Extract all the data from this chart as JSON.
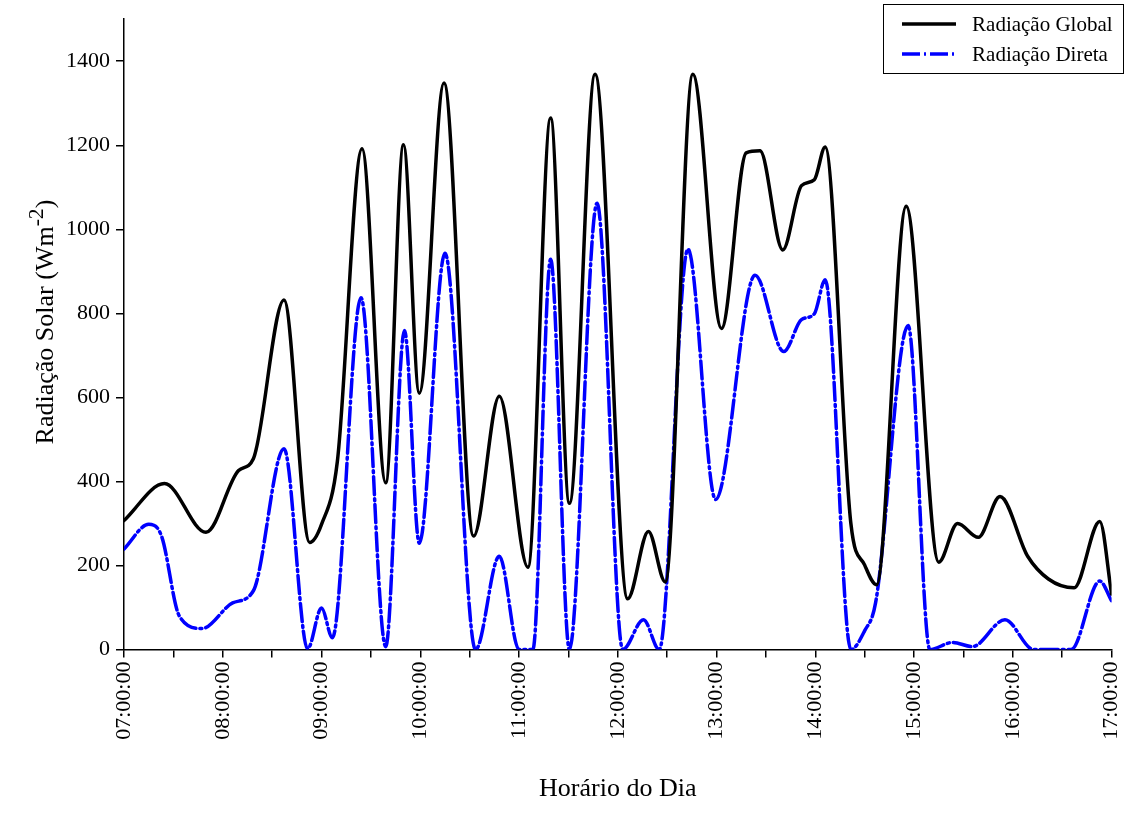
{
  "chart_data": {
    "type": "line",
    "xlabel": "Horário do Dia",
    "ylabel": "Radiação Solar (Wm$^{-2}$)",
    "xlim": [
      7,
      17
    ],
    "xticks": [
      {
        "value": 7,
        "label": "07:00:00"
      },
      {
        "value": 7.5,
        "label": null
      },
      {
        "value": 8,
        "label": "08:00:00"
      },
      {
        "value": 8.5,
        "label": null
      },
      {
        "value": 9,
        "label": "09:00:00"
      },
      {
        "value": 9.5,
        "label": null
      },
      {
        "value": 10,
        "label": "10:00:00"
      },
      {
        "value": 10.5,
        "label": null
      },
      {
        "value": 11,
        "label": "11:00:00"
      },
      {
        "value": 11.5,
        "label": null
      },
      {
        "value": 12,
        "label": "12:00:00"
      },
      {
        "value": 12.5,
        "label": null
      },
      {
        "value": 13,
        "label": "13:00:00"
      },
      {
        "value": 13.5,
        "label": null
      },
      {
        "value": 14,
        "label": "14:00:00"
      },
      {
        "value": 14.5,
        "label": null
      },
      {
        "value": 15,
        "label": "15:00:00"
      },
      {
        "value": 15.5,
        "label": null
      },
      {
        "value": 16,
        "label": "16:00:00"
      },
      {
        "value": 16.5,
        "label": null
      },
      {
        "value": 17,
        "label": "17:00:00"
      }
    ],
    "ylim": [
      0,
      1500
    ],
    "yticks": [
      0,
      200,
      400,
      600,
      800,
      1000,
      1200,
      1400
    ],
    "grid": false,
    "legend": "top right",
    "marker": "none",
    "series": [
      {
        "name": "Radiação Global",
        "color": "#000000",
        "line_style": "solid",
        "x": [
          7.0,
          7.41,
          7.83,
          8.16,
          8.31,
          8.62,
          8.88,
          9.0,
          9.16,
          9.41,
          9.65,
          9.83,
          9.99,
          10.24,
          10.54,
          10.8,
          11.09,
          11.32,
          11.51,
          11.77,
          12.1,
          12.31,
          12.48,
          12.76,
          13.05,
          13.3,
          13.44,
          13.67,
          13.86,
          13.99,
          14.1,
          14.36,
          14.5,
          14.62,
          14.92,
          15.25,
          15.44,
          15.65,
          15.87,
          16.15,
          16.36,
          16.62,
          16.88,
          17.0
        ],
        "values": [
          307,
          395,
          279,
          426,
          454,
          832,
          255,
          298,
          447,
          1192,
          397,
          1201,
          610,
          1348,
          270,
          603,
          196,
          1265,
          348,
          1369,
          121,
          281,
          161,
          1369,
          764,
          1182,
          1187,
          951,
          1104,
          1118,
          1196,
          300,
          201,
          154,
          1055,
          208,
          300,
          267,
          364,
          222,
          168,
          147,
          305,
          132
        ]
      },
      {
        "name": "Radiação Direta",
        "color": "#0000ff",
        "line_style": "dashed",
        "x": [
          7.0,
          7.25,
          7.38,
          7.56,
          7.79,
          8.1,
          8.31,
          8.62,
          8.86,
          9.0,
          9.11,
          9.4,
          9.65,
          9.84,
          9.99,
          10.25,
          10.56,
          10.8,
          11.0,
          11.14,
          11.32,
          11.51,
          11.79,
          12.05,
          12.26,
          12.42,
          12.71,
          12.99,
          13.39,
          13.68,
          13.86,
          13.99,
          14.1,
          14.36,
          14.5,
          14.61,
          14.94,
          15.16,
          15.39,
          15.59,
          15.92,
          16.21,
          16.59,
          16.88,
          17.0
        ],
        "values": [
          239,
          298,
          270,
          80,
          50,
          111,
          140,
          478,
          2,
          99,
          28,
          837,
          7,
          759,
          253,
          943,
          0,
          222,
          0,
          0,
          929,
          0,
          1062,
          0,
          71,
          0,
          953,
          357,
          891,
          709,
          785,
          799,
          880,
          0,
          45,
          111,
          771,
          0,
          17,
          7,
          71,
          0,
          0,
          163,
          116
        ]
      }
    ]
  }
}
